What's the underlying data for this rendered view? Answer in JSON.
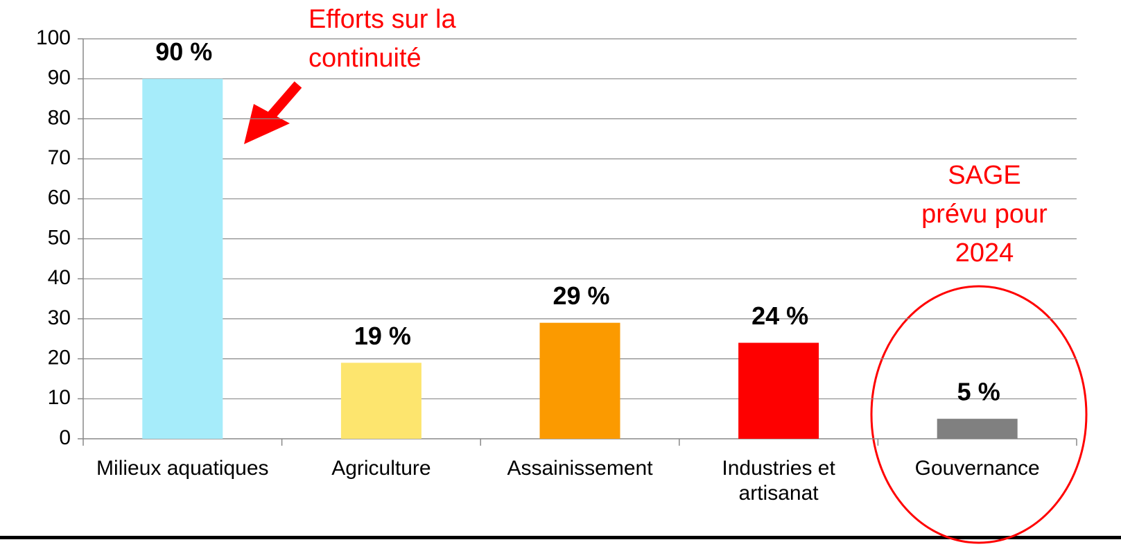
{
  "chart_data": {
    "type": "bar",
    "categories": [
      "Milieux aquatiques",
      "Agriculture",
      "Assainissement",
      "Industries et artisanat",
      "Gouvernance"
    ],
    "values": [
      90,
      19,
      29,
      24,
      5
    ],
    "value_labels": [
      "90 %",
      "19 %",
      "29 %",
      "24 %",
      "5 %"
    ],
    "colors": [
      "#a6ecfa",
      "#fde56e",
      "#fb9a00",
      "#fe0000",
      "#808080"
    ],
    "ylim": [
      0,
      100
    ],
    "yticks": [
      0,
      10,
      20,
      30,
      40,
      50,
      60,
      70,
      80,
      90,
      100
    ],
    "grid": true,
    "annotations": [
      {
        "lines": [
          "Efforts sur la",
          "continuité"
        ],
        "color": "#ff0000"
      },
      {
        "lines": [
          "SAGE",
          "prévu pour",
          "2024"
        ],
        "color": "#ff0000"
      }
    ]
  }
}
